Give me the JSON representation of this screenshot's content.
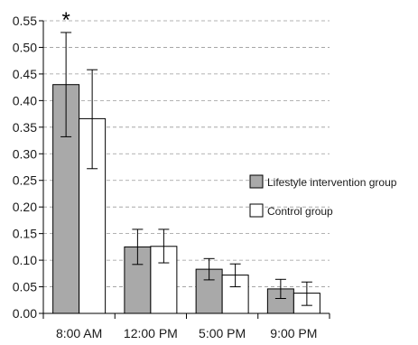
{
  "chart_data": {
    "type": "bar",
    "title": "",
    "xlabel": "",
    "ylabel": "",
    "ylim": [
      0,
      0.55
    ],
    "y_ticks": [
      "0.00",
      "0.05",
      "0.10",
      "0.15",
      "0.20",
      "0.25",
      "0.30",
      "0.35",
      "0.40",
      "0.45",
      "0.50",
      "0.55"
    ],
    "categories": [
      "8:00 AM",
      "12:00 PM",
      "5:00 PM",
      "9:00 PM"
    ],
    "series": [
      {
        "name": "Lifestyle intervention group",
        "color": "#a9a9a9",
        "values": [
          0.43,
          0.125,
          0.083,
          0.046
        ],
        "err_low": [
          0.332,
          0.092,
          0.063,
          0.028
        ],
        "err_high": [
          0.528,
          0.158,
          0.103,
          0.064
        ]
      },
      {
        "name": "Control group",
        "color": "#ffffff",
        "values": [
          0.366,
          0.126,
          0.072,
          0.038
        ],
        "err_low": [
          0.272,
          0.095,
          0.05,
          0.015
        ],
        "err_high": [
          0.458,
          0.158,
          0.093,
          0.059
        ]
      }
    ],
    "annotations": [
      {
        "text": "*",
        "category": "8:00 AM"
      }
    ],
    "grid": "dashed horizontal",
    "legend_position": "right"
  }
}
